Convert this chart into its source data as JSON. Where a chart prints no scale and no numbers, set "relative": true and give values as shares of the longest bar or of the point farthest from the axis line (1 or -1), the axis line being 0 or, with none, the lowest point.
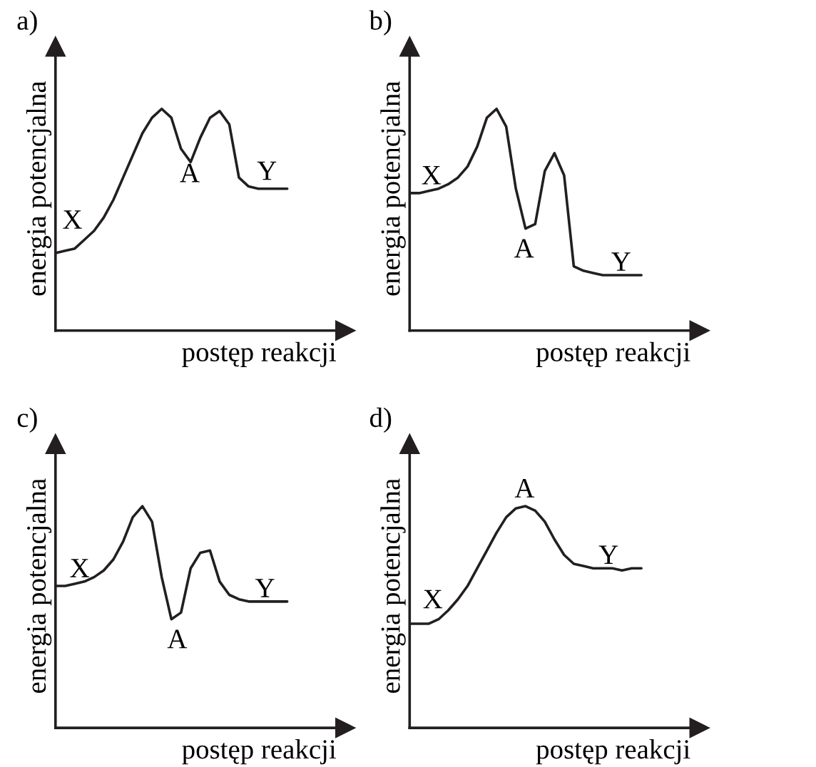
{
  "chart_data": [
    {
      "type": "line",
      "relative": true,
      "title": "a)",
      "xlabel": "postęp reakcji",
      "ylabel": "energia potencjalna",
      "categories": [
        null,
        null,
        null,
        null,
        null,
        null,
        null,
        null,
        null,
        null,
        null,
        null,
        null,
        null,
        null,
        null,
        null,
        null,
        null,
        null,
        null,
        null,
        null,
        null,
        null
      ],
      "series": [
        {
          "color": "#231f20",
          "values": [
            0.35,
            0.36,
            0.37,
            0.41,
            0.45,
            0.51,
            0.59,
            0.69,
            0.79,
            0.89,
            0.96,
            1,
            0.96,
            0.82,
            0.76,
            0.87,
            0.96,
            0.99,
            0.93,
            0.69,
            0.65,
            0.64,
            0.64,
            0.64,
            0.64
          ]
        }
      ],
      "annotations": [
        "X",
        "A",
        "Y"
      ]
    },
    {
      "type": "line",
      "relative": true,
      "title": "b)",
      "xlabel": "postęp reakcji",
      "ylabel": "energia potencjalna",
      "categories": [
        null,
        null,
        null,
        null,
        null,
        null,
        null,
        null,
        null,
        null,
        null,
        null,
        null,
        null,
        null,
        null,
        null,
        null,
        null,
        null,
        null,
        null,
        null,
        null,
        null
      ],
      "series": [
        {
          "color": "#231f20",
          "values": [
            0.62,
            0.62,
            0.63,
            0.64,
            0.66,
            0.69,
            0.74,
            0.83,
            0.96,
            1,
            0.92,
            0.64,
            0.46,
            0.48,
            0.72,
            0.8,
            0.7,
            0.29,
            0.27,
            0.26,
            0.25,
            0.25,
            0.25,
            0.25,
            0.25
          ]
        }
      ],
      "annotations": [
        "X",
        "A",
        "Y"
      ]
    },
    {
      "type": "line",
      "relative": true,
      "title": "c)",
      "xlabel": "postęp reakcji",
      "ylabel": "energia potencjalna",
      "categories": [
        null,
        null,
        null,
        null,
        null,
        null,
        null,
        null,
        null,
        null,
        null,
        null,
        null,
        null,
        null,
        null,
        null,
        null,
        null,
        null,
        null,
        null,
        null,
        null,
        null
      ],
      "series": [
        {
          "color": "#231f20",
          "values": [
            0.64,
            0.64,
            0.65,
            0.66,
            0.68,
            0.71,
            0.76,
            0.84,
            0.95,
            1,
            0.93,
            0.68,
            0.49,
            0.52,
            0.72,
            0.79,
            0.8,
            0.66,
            0.6,
            0.58,
            0.57,
            0.57,
            0.57,
            0.57,
            0.57
          ]
        }
      ],
      "annotations": [
        "X",
        "A",
        "Y"
      ]
    },
    {
      "type": "line",
      "relative": true,
      "title": "d)",
      "xlabel": "postęp reakcji",
      "ylabel": "energia potencjalna",
      "categories": [
        null,
        null,
        null,
        null,
        null,
        null,
        null,
        null,
        null,
        null,
        null,
        null,
        null,
        null,
        null,
        null,
        null,
        null,
        null,
        null,
        null,
        null,
        null,
        null,
        null
      ],
      "series": [
        {
          "color": "#231f20",
          "values": [
            0.47,
            0.47,
            0.47,
            0.49,
            0.53,
            0.58,
            0.64,
            0.72,
            0.8,
            0.88,
            0.95,
            0.99,
            1,
            0.98,
            0.93,
            0.85,
            0.78,
            0.74,
            0.73,
            0.72,
            0.72,
            0.72,
            0.71,
            0.72,
            0.72
          ]
        }
      ],
      "annotations": [
        "X",
        "A",
        "Y"
      ]
    }
  ]
}
